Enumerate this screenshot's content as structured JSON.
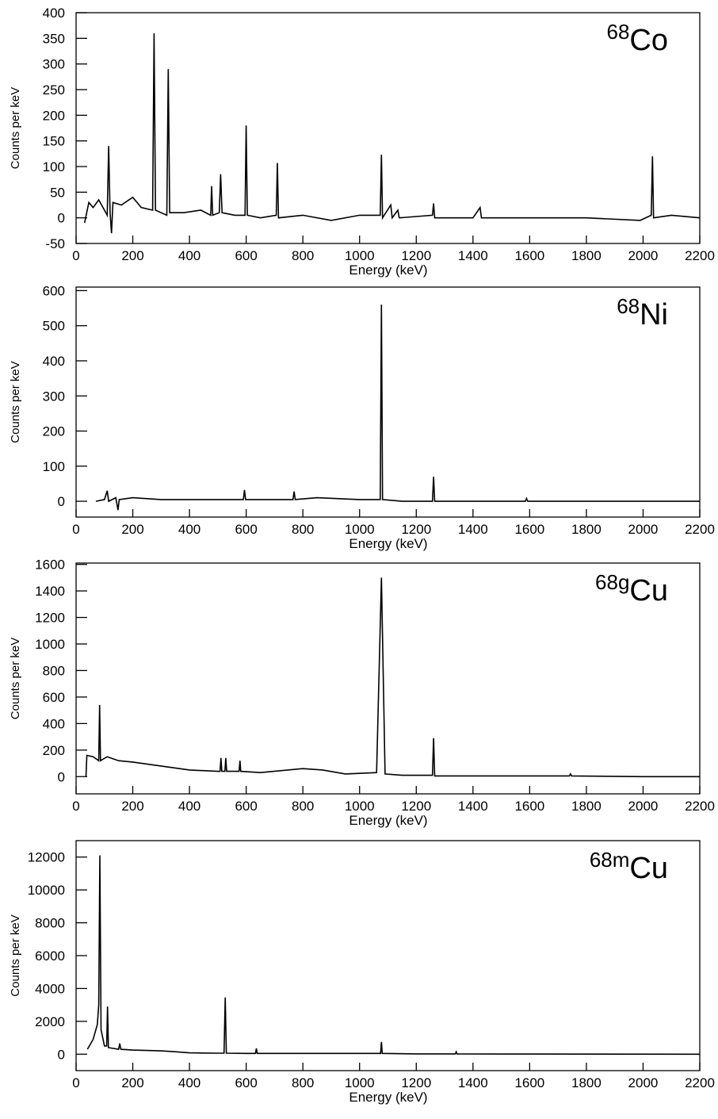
{
  "chart_data": [
    {
      "type": "line",
      "label": {
        "mass": "68",
        "symbol": "Co"
      },
      "xlabel": "Energy (keV)",
      "ylabel": "Counts per keV",
      "color": "#000000",
      "xlim": [
        0,
        2200
      ],
      "xticks": [
        0,
        200,
        400,
        600,
        800,
        1000,
        1200,
        1400,
        1600,
        1800,
        2000,
        2200
      ],
      "ylim": [
        -50,
        400
      ],
      "yticks": [
        -50,
        0,
        50,
        100,
        150,
        200,
        250,
        300,
        350,
        400
      ],
      "x": [
        30,
        45,
        60,
        80,
        100,
        110,
        115,
        120,
        125,
        130,
        160,
        200,
        230,
        270,
        275,
        280,
        300,
        320,
        325,
        330,
        380,
        440,
        475,
        478,
        482,
        505,
        510,
        515,
        560,
        596,
        600,
        604,
        650,
        706,
        710,
        714,
        800,
        900,
        1000,
        1073,
        1077,
        1081,
        1110,
        1115,
        1135,
        1140,
        1257,
        1261,
        1265,
        1400,
        1425,
        1430,
        1600,
        1800,
        1990,
        2029,
        2033,
        2037,
        2100,
        2200
      ],
      "values": [
        -10,
        30,
        20,
        35,
        15,
        5,
        140,
        10,
        -30,
        30,
        25,
        40,
        20,
        15,
        360,
        15,
        10,
        5,
        290,
        10,
        10,
        15,
        5,
        62,
        5,
        10,
        85,
        10,
        5,
        5,
        180,
        5,
        0,
        5,
        107,
        0,
        5,
        -5,
        5,
        5,
        123,
        0,
        25,
        0,
        15,
        0,
        5,
        28,
        0,
        0,
        20,
        0,
        0,
        0,
        -5,
        5,
        120,
        0,
        5,
        0
      ]
    },
    {
      "type": "line",
      "label": {
        "mass": "68",
        "symbol": "Ni"
      },
      "xlabel": "Energy (keV)",
      "ylabel": "Counts per keV",
      "color": "#000000",
      "xlim": [
        0,
        2200
      ],
      "xticks": [
        0,
        200,
        400,
        600,
        800,
        1000,
        1200,
        1400,
        1600,
        1800,
        2000,
        2200
      ],
      "ylim": [
        -45,
        610
      ],
      "yticks": [
        0,
        100,
        200,
        300,
        400,
        500,
        600
      ],
      "x": [
        70,
        100,
        110,
        115,
        140,
        148,
        152,
        200,
        300,
        400,
        500,
        590,
        594,
        598,
        700,
        765,
        769,
        773,
        850,
        1000,
        1073,
        1077,
        1081,
        1150,
        1257,
        1261,
        1265,
        1400,
        1585,
        1589,
        1593,
        1800,
        2000,
        2200
      ],
      "values": [
        0,
        5,
        30,
        0,
        10,
        -25,
        5,
        10,
        5,
        5,
        5,
        5,
        32,
        5,
        5,
        5,
        28,
        5,
        10,
        5,
        5,
        560,
        5,
        0,
        0,
        70,
        0,
        0,
        0,
        8,
        0,
        0,
        0,
        0
      ]
    },
    {
      "type": "line",
      "label": {
        "mass": "68g",
        "symbol": "Cu"
      },
      "xlabel": "Energy (keV)",
      "ylabel": "Counts per keV",
      "color": "#000000",
      "xlim": [
        0,
        2200
      ],
      "xticks": [
        0,
        200,
        400,
        600,
        800,
        1000,
        1200,
        1400,
        1600,
        1800,
        2000,
        2200
      ],
      "ylim": [
        -130,
        1610
      ],
      "yticks": [
        0,
        200,
        400,
        600,
        800,
        1000,
        1200,
        1400,
        1600
      ],
      "x": [
        35,
        38,
        60,
        80,
        83,
        86,
        110,
        150,
        200,
        300,
        400,
        500,
        508,
        511,
        514,
        525,
        528,
        531,
        575,
        578,
        581,
        650,
        800,
        870,
        950,
        1060,
        1077,
        1090,
        1150,
        1257,
        1261,
        1265,
        1400,
        1740,
        1744,
        1748,
        2000,
        2200
      ],
      "values": [
        0,
        160,
        150,
        120,
        540,
        120,
        150,
        120,
        110,
        80,
        50,
        40,
        40,
        140,
        40,
        40,
        140,
        40,
        40,
        120,
        40,
        30,
        60,
        50,
        20,
        30,
        1500,
        20,
        10,
        10,
        290,
        5,
        5,
        5,
        20,
        5,
        0,
        0
      ]
    },
    {
      "type": "line",
      "label": {
        "mass": "68m",
        "symbol": "Cu"
      },
      "xlabel": "Energy (keV)",
      "ylabel": "Counts per keV",
      "color": "#000000",
      "xlim": [
        0,
        2200
      ],
      "xticks": [
        0,
        200,
        400,
        600,
        800,
        1000,
        1200,
        1400,
        1600,
        1800,
        2000,
        2200
      ],
      "ylim": [
        -1000,
        13000
      ],
      "yticks": [
        0,
        2000,
        4000,
        6000,
        8000,
        10000,
        12000
      ],
      "x": [
        40,
        60,
        75,
        80,
        84,
        88,
        100,
        108,
        111,
        114,
        150,
        154,
        158,
        200,
        300,
        350,
        400,
        500,
        522,
        526,
        530,
        600,
        633,
        636,
        639,
        800,
        1000,
        1074,
        1077,
        1080,
        1200,
        1338,
        1341,
        1344,
        1600,
        2200
      ],
      "values": [
        300,
        900,
        1800,
        3000,
        12100,
        1500,
        500,
        500,
        2900,
        400,
        300,
        650,
        300,
        250,
        200,
        150,
        80,
        60,
        60,
        3450,
        60,
        50,
        50,
        350,
        50,
        50,
        50,
        50,
        750,
        50,
        20,
        20,
        150,
        20,
        10,
        0
      ]
    }
  ]
}
